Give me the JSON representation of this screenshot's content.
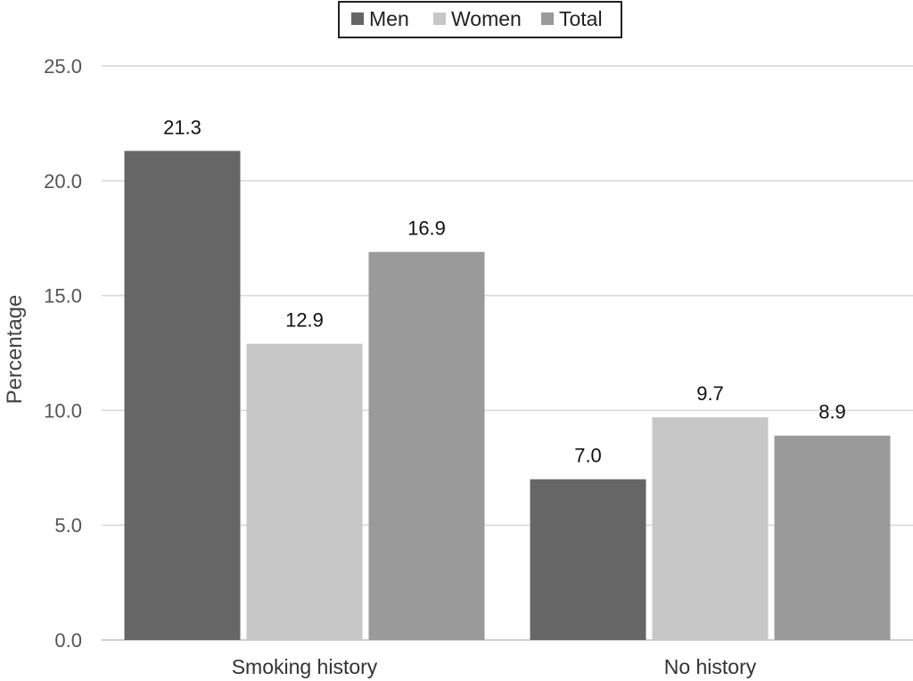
{
  "chart_data": {
    "type": "bar",
    "categories": [
      "Smoking history",
      "No history"
    ],
    "series": [
      {
        "name": "Men",
        "values": [
          21.3,
          7.0
        ],
        "color": "#666666"
      },
      {
        "name": "Women",
        "values": [
          12.9,
          9.7
        ],
        "color": "#c7c7c7"
      },
      {
        "name": "Total",
        "values": [
          16.9,
          8.9
        ],
        "color": "#9a9a9a"
      }
    ],
    "data_labels": [
      [
        "21.3",
        "7.0"
      ],
      [
        "12.9",
        "9.7"
      ],
      [
        "16.9",
        "8.9"
      ]
    ],
    "y_ticks": [
      "0.0",
      "5.0",
      "10.0",
      "15.0",
      "20.0",
      "25.0"
    ],
    "y_tick_values": [
      0,
      5,
      10,
      15,
      20,
      25
    ],
    "ylim": [
      0,
      25
    ],
    "ylabel": "Percentage",
    "xlabel": "",
    "title": "",
    "grid": true,
    "legend_position": "top-center"
  }
}
